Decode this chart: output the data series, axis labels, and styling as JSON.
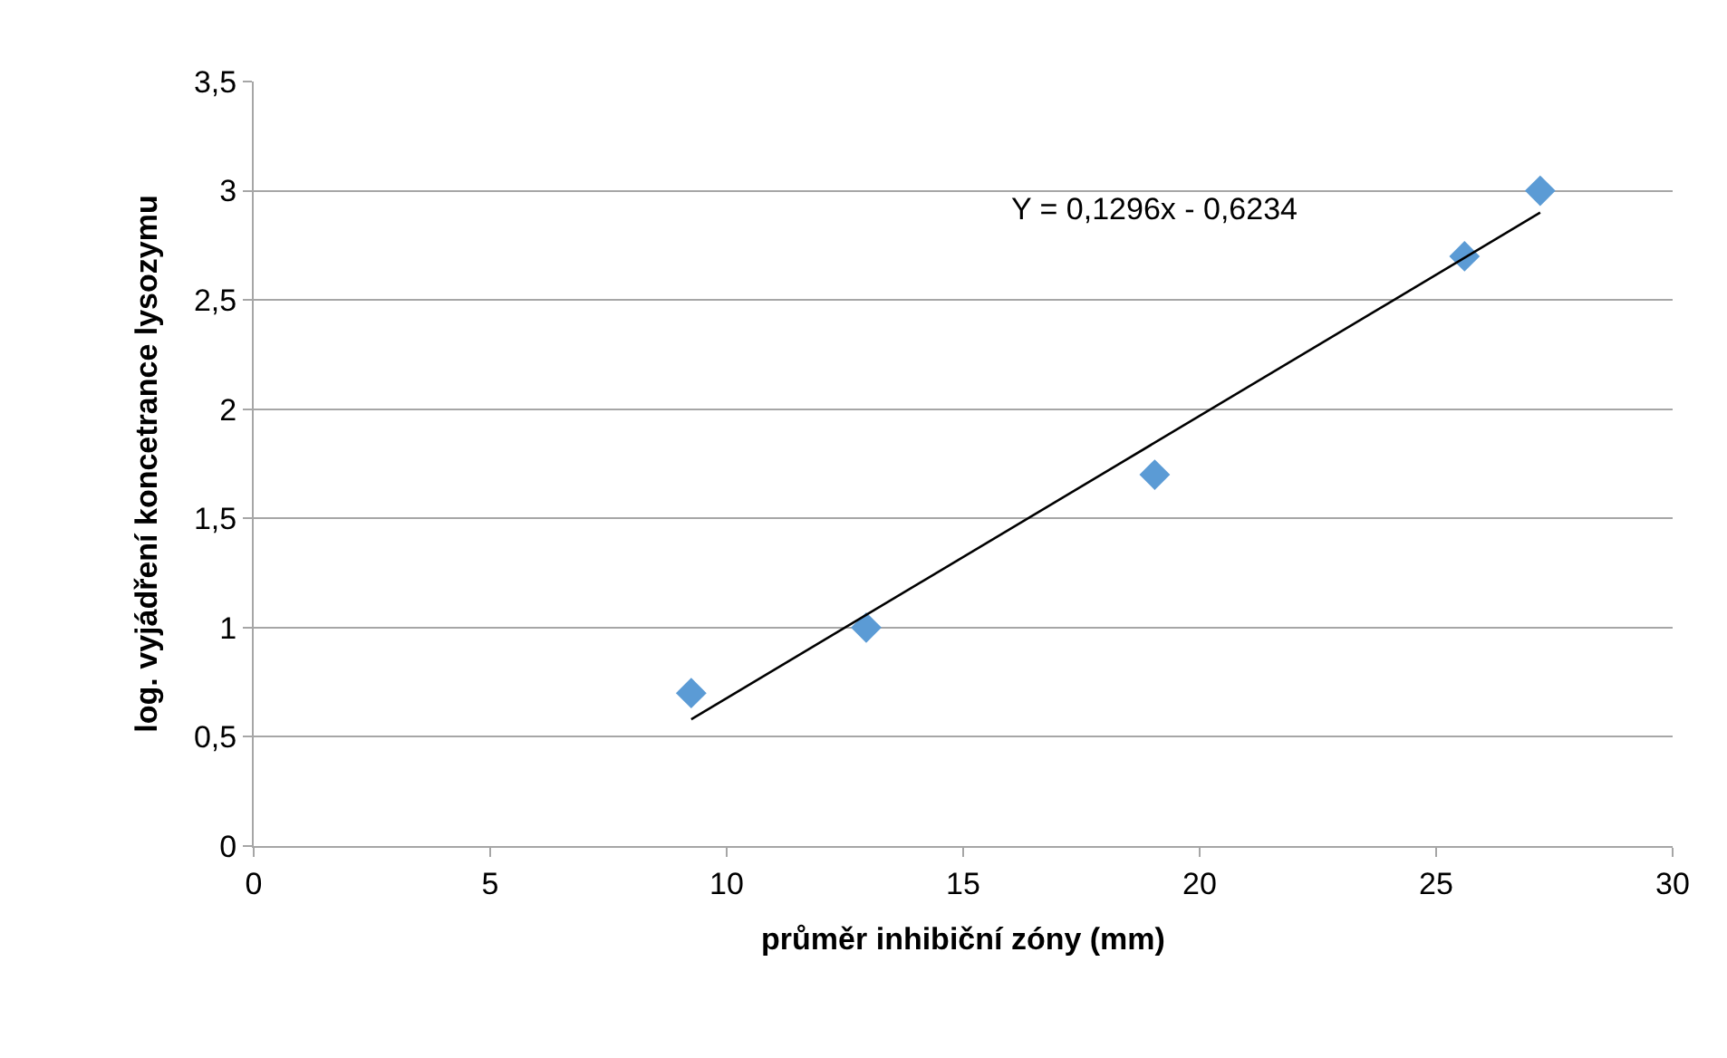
{
  "chart_data": {
    "type": "scatter",
    "xlabel": "průměr inhibiční zóny (mm)",
    "ylabel": "log. vyjádření koncetrance lysozymu",
    "annotations": [
      "Y = 0,1296x - 0,6234"
    ],
    "series": [
      {
        "type": "scatter",
        "color": "#5b9bd5",
        "marker": "diamond",
        "x": [
          9.25,
          12.95,
          19.05,
          25.6,
          27.2
        ],
        "values": [
          0.7,
          1.0,
          1.7,
          2.7,
          3.0
        ]
      },
      {
        "type": "line",
        "color": "#000000",
        "marker": "none",
        "line_style": "solid",
        "x": [
          9.25,
          27.2
        ],
        "values": [
          0.58,
          2.9
        ]
      }
    ],
    "xlim": [
      0,
      30
    ],
    "xticks": [
      0,
      5,
      10,
      15,
      20,
      25,
      30
    ],
    "ylim": [
      0,
      3.5
    ],
    "yticks": [
      0,
      {
        "value": 0.5,
        "label": "0,5"
      },
      1,
      {
        "value": 1.5,
        "label": "1,5"
      },
      2,
      {
        "value": 2.5,
        "label": "2,5"
      },
      3,
      {
        "value": 3.5,
        "label": "3,5"
      }
    ],
    "grid": "y"
  }
}
